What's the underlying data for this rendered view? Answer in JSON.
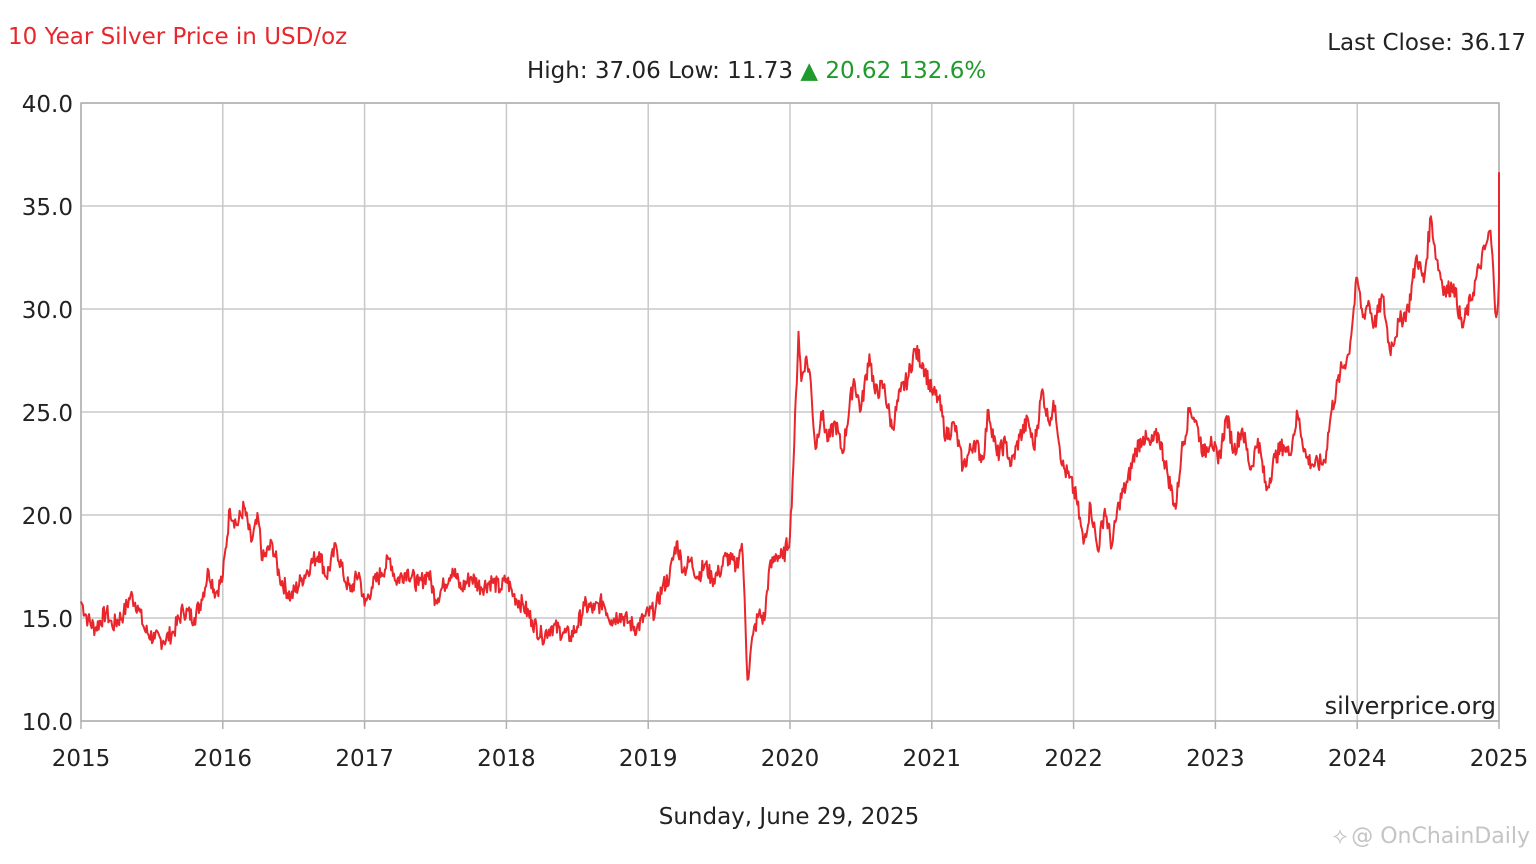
{
  "header": {
    "title": "10 Year Silver Price in USD/oz",
    "last_close": "Last Close: 36.17",
    "stats_prefix": "High: 37.06 Low: 11.73",
    "stats_change_arrow": "▲",
    "stats_change": "20.62 132.6%"
  },
  "footer": {
    "date": "Sunday, June 29, 2025",
    "watermark": "@ OnChainDaily"
  },
  "colors": {
    "line": "#e8262b",
    "grid": "#c8c8c8",
    "axis": "#b0b0b0",
    "change": "#1f9a2b"
  },
  "chart_data": {
    "type": "line",
    "title": "10 Year Silver Price in USD/oz",
    "xlabel": "",
    "ylabel": "",
    "xlim": [
      2015,
      2025
    ],
    "ylim": [
      10,
      40
    ],
    "x_ticks": [
      "2015",
      "2016",
      "2017",
      "2018",
      "2019",
      "2020",
      "2021",
      "2022",
      "2023",
      "2024",
      "2025"
    ],
    "y_ticks": [
      "10.0",
      "15.0",
      "20.0",
      "25.0",
      "30.0",
      "35.0",
      "40.0"
    ],
    "grid": true,
    "annotation": "silverprice.org",
    "series": [
      {
        "values": [
          [
            2015.0,
            15.8
          ],
          [
            2015.05,
            14.9
          ],
          [
            2015.1,
            14.5
          ],
          [
            2015.18,
            15.3
          ],
          [
            2015.22,
            14.6
          ],
          [
            2015.3,
            15.2
          ],
          [
            2015.35,
            16.1
          ],
          [
            2015.4,
            15.6
          ],
          [
            2015.45,
            14.4
          ],
          [
            2015.52,
            14.0
          ],
          [
            2015.58,
            13.9
          ],
          [
            2015.65,
            14.3
          ],
          [
            2015.72,
            15.4
          ],
          [
            2015.8,
            15.0
          ],
          [
            2015.85,
            15.9
          ],
          [
            2015.9,
            17.3
          ],
          [
            2015.95,
            16.2
          ],
          [
            2016.0,
            17.0
          ],
          [
            2016.05,
            20.3
          ],
          [
            2016.1,
            19.5
          ],
          [
            2016.15,
            20.4
          ],
          [
            2016.2,
            18.7
          ],
          [
            2016.25,
            19.8
          ],
          [
            2016.28,
            17.8
          ],
          [
            2016.35,
            18.6
          ],
          [
            2016.4,
            17.0
          ],
          [
            2016.48,
            16.0
          ],
          [
            2016.55,
            16.8
          ],
          [
            2016.62,
            17.6
          ],
          [
            2016.68,
            18.2
          ],
          [
            2016.73,
            17.0
          ],
          [
            2016.8,
            18.5
          ],
          [
            2016.85,
            17.1
          ],
          [
            2016.9,
            16.3
          ],
          [
            2016.96,
            17.2
          ],
          [
            2017.0,
            15.6
          ],
          [
            2017.05,
            16.5
          ],
          [
            2017.12,
            17.2
          ],
          [
            2017.18,
            17.9
          ],
          [
            2017.22,
            16.8
          ],
          [
            2017.3,
            17.3
          ],
          [
            2017.38,
            16.6
          ],
          [
            2017.45,
            17.2
          ],
          [
            2017.5,
            15.9
          ],
          [
            2017.56,
            16.6
          ],
          [
            2017.62,
            17.4
          ],
          [
            2017.68,
            16.4
          ],
          [
            2017.75,
            17.0
          ],
          [
            2017.82,
            16.5
          ],
          [
            2017.9,
            16.8
          ],
          [
            2017.96,
            16.4
          ],
          [
            2018.0,
            16.9
          ],
          [
            2018.05,
            16.1
          ],
          [
            2018.12,
            15.6
          ],
          [
            2018.18,
            14.9
          ],
          [
            2018.25,
            14.1
          ],
          [
            2018.32,
            14.6
          ],
          [
            2018.4,
            14.3
          ],
          [
            2018.45,
            14.1
          ],
          [
            2018.5,
            14.6
          ],
          [
            2018.55,
            15.6
          ],
          [
            2018.62,
            15.4
          ],
          [
            2018.68,
            15.8
          ],
          [
            2018.74,
            14.9
          ],
          [
            2018.8,
            15.2
          ],
          [
            2018.86,
            14.8
          ],
          [
            2018.92,
            14.5
          ],
          [
            2018.98,
            15.1
          ],
          [
            2019.05,
            15.4
          ],
          [
            2019.1,
            16.5
          ],
          [
            2019.15,
            17.0
          ],
          [
            2019.2,
            18.7
          ],
          [
            2019.25,
            17.3
          ],
          [
            2019.3,
            17.8
          ],
          [
            2019.35,
            17.0
          ],
          [
            2019.4,
            17.6
          ],
          [
            2019.45,
            16.9
          ],
          [
            2019.5,
            17.2
          ],
          [
            2019.55,
            18.0
          ],
          [
            2019.62,
            17.5
          ],
          [
            2019.66,
            18.6
          ],
          [
            2019.68,
            16.0
          ],
          [
            2019.7,
            12.0
          ],
          [
            2019.74,
            14.2
          ],
          [
            2019.78,
            15.2
          ],
          [
            2019.82,
            14.9
          ],
          [
            2019.85,
            17.2
          ],
          [
            2019.9,
            18.1
          ],
          [
            2019.95,
            17.9
          ],
          [
            2020.0,
            19.0
          ],
          [
            2020.03,
            23.5
          ],
          [
            2020.06,
            28.9
          ],
          [
            2020.08,
            26.5
          ],
          [
            2020.11,
            27.6
          ],
          [
            2020.14,
            26.9
          ],
          [
            2020.18,
            23.2
          ],
          [
            2020.22,
            25.0
          ],
          [
            2020.27,
            23.6
          ],
          [
            2020.32,
            24.5
          ],
          [
            2020.37,
            23.0
          ],
          [
            2020.45,
            26.6
          ],
          [
            2020.5,
            25.1
          ],
          [
            2020.56,
            27.8
          ],
          [
            2020.6,
            25.9
          ],
          [
            2020.66,
            26.3
          ],
          [
            2020.72,
            24.2
          ],
          [
            2020.78,
            26.0
          ],
          [
            2020.83,
            26.6
          ],
          [
            2020.88,
            28.0
          ],
          [
            2020.94,
            27.3
          ],
          [
            2021.0,
            26.0
          ],
          [
            2021.05,
            25.6
          ],
          [
            2021.1,
            23.8
          ],
          [
            2021.16,
            24.4
          ],
          [
            2021.22,
            22.3
          ],
          [
            2021.3,
            23.6
          ],
          [
            2021.36,
            22.7
          ],
          [
            2021.4,
            25.1
          ],
          [
            2021.46,
            22.9
          ],
          [
            2021.52,
            23.5
          ],
          [
            2021.56,
            22.4
          ],
          [
            2021.62,
            23.8
          ],
          [
            2021.68,
            24.6
          ],
          [
            2021.72,
            23.2
          ],
          [
            2021.78,
            26.1
          ],
          [
            2021.82,
            24.6
          ],
          [
            2021.87,
            25.3
          ],
          [
            2021.92,
            22.4
          ],
          [
            2021.97,
            21.8
          ],
          [
            2022.02,
            20.8
          ],
          [
            2022.07,
            18.6
          ],
          [
            2022.12,
            20.5
          ],
          [
            2022.17,
            18.3
          ],
          [
            2022.22,
            20.3
          ],
          [
            2022.27,
            18.5
          ],
          [
            2022.32,
            20.6
          ],
          [
            2022.38,
            21.6
          ],
          [
            2022.44,
            23.2
          ],
          [
            2022.49,
            23.8
          ],
          [
            2022.54,
            23.4
          ],
          [
            2022.6,
            23.9
          ],
          [
            2022.66,
            22.1
          ],
          [
            2022.72,
            20.3
          ],
          [
            2022.76,
            23.0
          ],
          [
            2022.82,
            25.2
          ],
          [
            2022.86,
            24.6
          ],
          [
            2022.92,
            22.9
          ],
          [
            2022.97,
            23.8
          ],
          [
            2023.02,
            22.5
          ],
          [
            2023.08,
            24.8
          ],
          [
            2023.13,
            23.1
          ],
          [
            2023.19,
            24.2
          ],
          [
            2023.25,
            22.2
          ],
          [
            2023.3,
            23.7
          ],
          [
            2023.36,
            21.2
          ],
          [
            2023.42,
            22.8
          ],
          [
            2023.48,
            23.4
          ],
          [
            2023.52,
            22.9
          ],
          [
            2023.58,
            24.9
          ],
          [
            2023.64,
            22.8
          ],
          [
            2023.7,
            22.4
          ],
          [
            2023.77,
            22.6
          ],
          [
            2023.82,
            25.1
          ],
          [
            2023.88,
            26.9
          ],
          [
            2023.94,
            27.8
          ],
          [
            2024.0,
            31.5
          ],
          [
            2024.04,
            29.6
          ],
          [
            2024.08,
            30.4
          ],
          [
            2024.12,
            29.2
          ],
          [
            2024.18,
            30.6
          ],
          [
            2024.23,
            28.0
          ],
          [
            2024.3,
            29.4
          ],
          [
            2024.36,
            30.0
          ],
          [
            2024.42,
            32.6
          ],
          [
            2024.47,
            31.3
          ],
          [
            2024.52,
            34.5
          ],
          [
            2024.56,
            32.4
          ],
          [
            2024.62,
            30.8
          ],
          [
            2024.68,
            31.2
          ],
          [
            2024.74,
            29.1
          ],
          [
            2024.8,
            30.4
          ],
          [
            2024.86,
            32.0
          ],
          [
            2024.9,
            32.9
          ],
          [
            2024.94,
            33.8
          ],
          [
            2024.98,
            29.6
          ],
          [
            2025.02,
            32.6
          ],
          [
            2025.06,
            33.0
          ],
          [
            2025.1,
            32.5
          ],
          [
            2025.14,
            34.5
          ],
          [
            2025.17,
            36.6
          ],
          [
            2025.2,
            36.0
          ]
        ]
      }
    ]
  }
}
